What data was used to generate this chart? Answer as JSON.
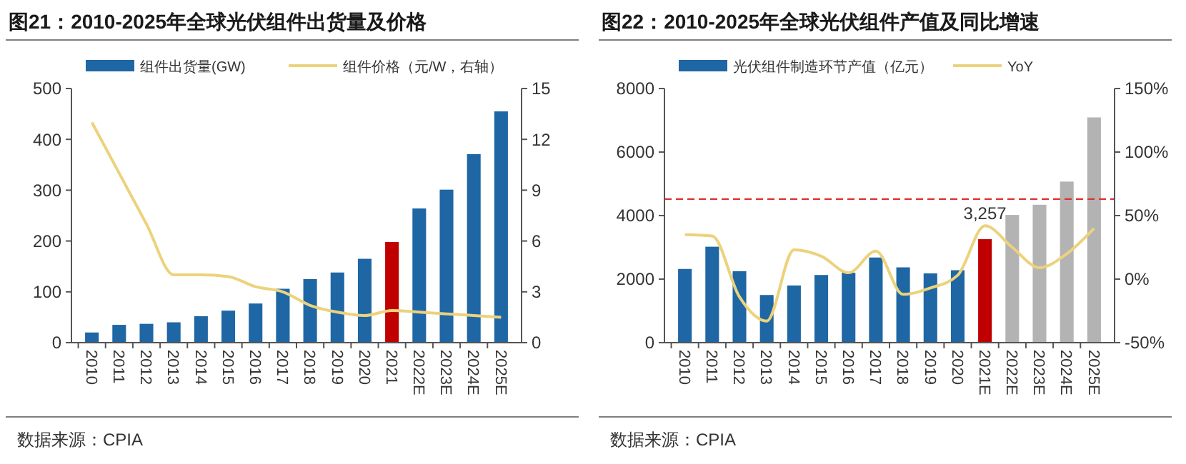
{
  "chart_data": [
    {
      "type": "bar",
      "title": "图21：2010-2025年全球光伏组件出货量及价格",
      "categories": [
        "2010",
        "2011",
        "2012",
        "2013",
        "2014",
        "2015",
        "2016",
        "2017",
        "2018",
        "2019",
        "2020",
        "2021",
        "2022E",
        "2023E",
        "2024E",
        "2025E"
      ],
      "series": [
        {
          "name": "组件出货量(GW)",
          "colors": [
            "#1f66a4",
            "#1f66a4",
            "#1f66a4",
            "#1f66a4",
            "#1f66a4",
            "#1f66a4",
            "#1f66a4",
            "#1f66a4",
            "#1f66a4",
            "#1f66a4",
            "#1f66a4",
            "#c00000",
            "#1f66a4",
            "#1f66a4",
            "#1f66a4",
            "#1f66a4"
          ],
          "values": [
            20,
            35,
            37,
            40,
            52,
            63,
            77,
            106,
            125,
            138,
            165,
            198,
            264,
            301,
            371,
            455
          ]
        },
        {
          "name": "组件价格（元/W，右轴）",
          "type": "line",
          "axis": "y2",
          "color": "#ecd27c",
          "values": [
            13.0,
            10.0,
            7.0,
            4.0,
            4.0,
            3.9,
            3.3,
            3.0,
            2.2,
            1.8,
            1.6,
            1.9,
            1.8,
            1.7,
            1.6,
            1.5
          ]
        }
      ],
      "ylim": [
        0,
        500
      ],
      "yticks": [
        0,
        100,
        200,
        300,
        400,
        500
      ],
      "y2lim": [
        0,
        15
      ],
      "y2ticks": [
        0,
        3,
        6,
        9,
        12,
        15
      ],
      "grid": false,
      "legend": "top",
      "marker": "none",
      "annotations": [
        "数据来源：CPIA"
      ]
    },
    {
      "type": "bar",
      "title": "图22：2010-2025年全球光伏组件产值及同比增速",
      "categories": [
        "2010",
        "2011",
        "2012",
        "2013",
        "2014",
        "2015",
        "2016",
        "2017",
        "2018",
        "2019",
        "2020",
        "2021E",
        "2022E",
        "2023E",
        "2024E",
        "2025E"
      ],
      "series": [
        {
          "name": "光伏组件制造环节产值（亿元）",
          "colors": [
            "#1f66a4",
            "#1f66a4",
            "#1f66a4",
            "#1f66a4",
            "#1f66a4",
            "#1f66a4",
            "#1f66a4",
            "#1f66a4",
            "#1f66a4",
            "#1f66a4",
            "#1f66a4",
            "#c00000",
            "#b3b3b3",
            "#b3b3b3",
            "#b3b3b3",
            "#b3b3b3"
          ],
          "values": [
            2320,
            3020,
            2250,
            1500,
            1800,
            2130,
            2200,
            2680,
            2370,
            2180,
            2280,
            3257,
            4020,
            4340,
            5070,
            7090
          ],
          "value_labels": [
            null,
            null,
            null,
            null,
            null,
            null,
            null,
            null,
            null,
            null,
            null,
            "3,257",
            null,
            null,
            null,
            null
          ]
        },
        {
          "name": "YoY",
          "type": "line",
          "axis": "y2",
          "color": "#ecd27c",
          "values": [
            35,
            34,
            -14,
            -33,
            23,
            18,
            5,
            22,
            -12,
            -7,
            3,
            42,
            25,
            9,
            20,
            40
          ]
        }
      ],
      "ylim": [
        0,
        8000
      ],
      "yticks": [
        0,
        2000,
        4000,
        6000,
        8000
      ],
      "y2lim": [
        -50,
        150
      ],
      "y2ticks": [
        {
          "value": -50,
          "label": "-50%"
        },
        {
          "value": 0,
          "label": "0%"
        },
        {
          "value": 50,
          "label": "50%"
        },
        {
          "value": 100,
          "label": "100%"
        },
        {
          "value": 150,
          "label": "150%"
        }
      ],
      "ref_lines": [
        {
          "axis": "y2",
          "value": 63,
          "color": "#e03030",
          "line_style": "dashed"
        }
      ],
      "grid": false,
      "legend": "top",
      "marker": "none",
      "annotations": [
        "数据来源：CPIA"
      ]
    }
  ]
}
